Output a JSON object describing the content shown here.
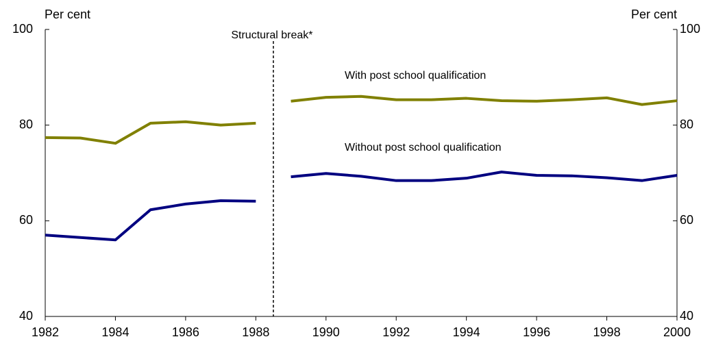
{
  "chart_data": {
    "type": "line",
    "y_label_left": "Per cent",
    "y_label_right": "Per cent",
    "x": [
      1982,
      1983,
      1984,
      1985,
      1986,
      1987,
      1988,
      1988.5,
      1989,
      1990,
      1991,
      1992,
      1993,
      1994,
      1995,
      1996,
      1997,
      1998,
      1999,
      2000
    ],
    "series": [
      {
        "name": "With post school qualification",
        "color": "#808000",
        "values": [
          77.4,
          77.3,
          76.2,
          80.4,
          80.7,
          80.0,
          80.4,
          null,
          85.0,
          85.8,
          86.0,
          85.3,
          85.3,
          85.6,
          85.1,
          85.0,
          85.3,
          85.7,
          84.3,
          85.1
        ]
      },
      {
        "name": "Without post school qualification",
        "color": "#000080",
        "values": [
          57.0,
          56.5,
          56.0,
          62.3,
          63.5,
          64.2,
          64.1,
          null,
          69.2,
          69.9,
          69.3,
          68.4,
          68.4,
          68.9,
          70.2,
          69.5,
          69.4,
          69.0,
          68.4,
          69.5
        ]
      }
    ],
    "annotation": {
      "text": "Structural break*",
      "x": 1988.5
    },
    "xlim": [
      1982,
      2000
    ],
    "xticks": [
      1982,
      1984,
      1986,
      1988,
      1990,
      1992,
      1994,
      1996,
      1998,
      2000
    ],
    "ylim": [
      40,
      100
    ],
    "yticks": [
      40,
      60,
      80,
      100
    ],
    "y2lim": [
      40,
      100
    ],
    "y2ticks": [
      40,
      60,
      80,
      100
    ],
    "grid": false
  }
}
